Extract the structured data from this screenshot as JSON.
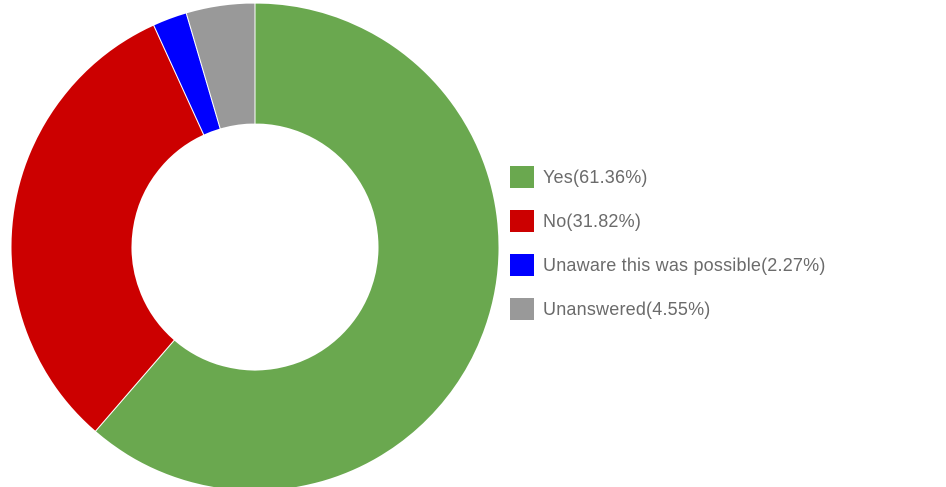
{
  "chart_data": {
    "type": "pie",
    "variant": "donut",
    "start_angle_deg": 270,
    "direction": "clockwise",
    "legend_position": "right",
    "series": [
      {
        "label": "Yes(61.36%)",
        "value": 61.36,
        "color": "#6aa84f"
      },
      {
        "label": "No(31.82%)",
        "value": 31.82,
        "color": "#cc0000"
      },
      {
        "label": "Unaware this was possible(2.27%)",
        "value": 2.27,
        "color": "#0000ff"
      },
      {
        "label": "Unanswered(4.55%)",
        "value": 4.55,
        "color": "#999999"
      }
    ]
  }
}
